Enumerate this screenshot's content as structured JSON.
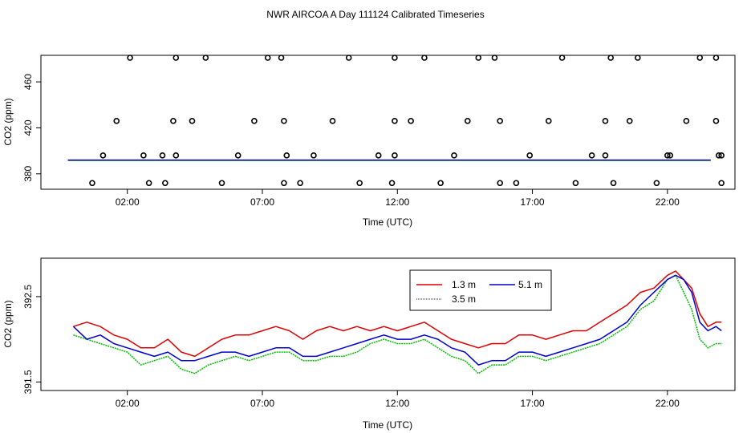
{
  "title": "NWR AIRCOA A  Day 111124  Calibrated Timeseries",
  "colors": {
    "red": "#dd0000",
    "green": "#00bb00",
    "blue": "#0000cc",
    "axis": "#000000"
  },
  "chart_data": [
    {
      "type": "scatter",
      "xlabel": "Time (UTC)",
      "ylabel": "CO2 (ppm)",
      "x_ticks": [
        "02:00",
        "07:00",
        "12:00",
        "17:00",
        "22:00"
      ],
      "x_tick_values": [
        2,
        7,
        12,
        17,
        22
      ],
      "y_ticks": [
        "380",
        "420",
        "460"
      ],
      "y_tick_values": [
        380,
        420,
        460
      ],
      "xlim": [
        -1.2,
        24.5
      ],
      "ylim": [
        366.6,
        483.1
      ],
      "points": {
        "x": [
          0.7,
          1.1,
          1.6,
          2.1,
          2.6,
          2.8,
          3.3,
          3.4,
          3.7,
          3.8,
          3.8,
          4.4,
          4.9,
          5.5,
          6.1,
          6.7,
          7.2,
          7.7,
          7.8,
          7.8,
          7.9,
          8.4,
          8.9,
          9.6,
          10.2,
          10.6,
          11.3,
          11.8,
          11.9,
          11.9,
          11.9,
          12.5,
          13.0,
          13.6,
          14.1,
          14.6,
          15.0,
          15.6,
          15.8,
          15.8,
          16.4,
          16.9,
          17.6,
          18.1,
          18.6,
          19.2,
          19.7,
          19.7,
          19.9,
          20.0,
          20.6,
          20.9,
          21.6,
          22.0,
          22.1,
          22.7,
          23.2,
          23.8,
          23.8,
          23.9,
          24.0,
          24.0
        ],
        "y": [
          372,
          396,
          426,
          481,
          396,
          372,
          396,
          372,
          426,
          481,
          396,
          426,
          481,
          372,
          396,
          426,
          481,
          481,
          426,
          372,
          396,
          372,
          396,
          426,
          481,
          372,
          396,
          372,
          481,
          426,
          396,
          426,
          481,
          372,
          396,
          426,
          481,
          481,
          426,
          372,
          372,
          396,
          426,
          481,
          372,
          396,
          396,
          426,
          481,
          372,
          426,
          481,
          372,
          396,
          396,
          426,
          481,
          481,
          426,
          396,
          372,
          396
        ]
      },
      "series": [
        {
          "name": "1.3 m",
          "color": "#dd0000",
          "level": 392.0
        },
        {
          "name": "3.5 m",
          "color": "#00bb00",
          "level": 391.7
        },
        {
          "name": "5.1 m",
          "color": "#0000cc",
          "level": 391.9
        }
      ]
    },
    {
      "type": "line",
      "xlabel": "Time (UTC)",
      "ylabel": "CO2 (ppm)",
      "x_ticks": [
        "02:00",
        "07:00",
        "12:00",
        "17:00",
        "22:00"
      ],
      "x_tick_values": [
        2,
        7,
        12,
        17,
        22
      ],
      "y_ticks": [
        "391.5",
        "392.5"
      ],
      "y_tick_values": [
        391.5,
        392.5
      ],
      "xlim": [
        -1.2,
        24.5
      ],
      "ylim": [
        391.4,
        392.95
      ],
      "legend_position": "top-right",
      "x": [
        0.0,
        0.5,
        1.0,
        1.5,
        2.0,
        2.5,
        3.0,
        3.5,
        4.0,
        4.5,
        5.0,
        5.5,
        6.0,
        6.5,
        7.0,
        7.5,
        8.0,
        8.5,
        9.0,
        9.5,
        10.0,
        10.5,
        11.0,
        11.5,
        12.0,
        12.5,
        13.0,
        13.5,
        14.0,
        14.5,
        15.0,
        15.5,
        16.0,
        16.5,
        17.0,
        17.5,
        18.0,
        18.5,
        19.0,
        19.5,
        20.0,
        20.5,
        21.0,
        21.5,
        22.0,
        22.3,
        22.6,
        22.9,
        23.2,
        23.5,
        23.8,
        24.0
      ],
      "series": [
        {
          "name": "1.3 m",
          "color": "#dd0000",
          "values": [
            392.15,
            392.2,
            392.15,
            392.05,
            392.0,
            391.9,
            391.9,
            392.0,
            391.85,
            391.8,
            391.9,
            392.0,
            392.05,
            392.05,
            392.1,
            392.15,
            392.1,
            392.0,
            392.1,
            392.15,
            392.1,
            392.15,
            392.1,
            392.15,
            392.1,
            392.15,
            392.2,
            392.1,
            392.0,
            391.95,
            391.9,
            391.95,
            391.95,
            392.05,
            392.05,
            392.0,
            392.05,
            392.1,
            392.1,
            392.2,
            392.3,
            392.4,
            392.55,
            392.6,
            392.75,
            392.8,
            392.7,
            392.6,
            392.3,
            392.15,
            392.2,
            392.2
          ]
        },
        {
          "name": "3.5 m",
          "color": "#00bb00",
          "values": [
            392.05,
            392.0,
            391.95,
            391.9,
            391.85,
            391.7,
            391.75,
            391.8,
            391.65,
            391.6,
            391.7,
            391.75,
            391.8,
            391.75,
            391.8,
            391.85,
            391.85,
            391.75,
            391.75,
            391.8,
            391.8,
            391.85,
            391.95,
            392.0,
            391.95,
            391.95,
            392.0,
            391.9,
            391.8,
            391.75,
            391.6,
            391.7,
            391.7,
            391.8,
            391.8,
            391.75,
            391.8,
            391.85,
            391.9,
            391.95,
            392.05,
            392.15,
            392.35,
            392.45,
            392.7,
            392.75,
            392.55,
            392.35,
            392.0,
            391.9,
            391.95,
            391.95
          ]
        },
        {
          "name": "5.1 m",
          "color": "#0000cc",
          "values": [
            392.15,
            392.0,
            392.05,
            391.95,
            391.9,
            391.85,
            391.8,
            391.85,
            391.75,
            391.75,
            391.8,
            391.85,
            391.85,
            391.8,
            391.85,
            391.9,
            391.9,
            391.8,
            391.8,
            391.85,
            391.9,
            391.95,
            392.0,
            392.05,
            392.0,
            392.0,
            392.05,
            392.0,
            391.9,
            391.85,
            391.7,
            391.75,
            391.75,
            391.85,
            391.85,
            391.8,
            391.85,
            391.9,
            391.95,
            392.0,
            392.1,
            392.2,
            392.4,
            392.55,
            392.7,
            392.75,
            392.7,
            392.55,
            392.2,
            392.1,
            392.15,
            392.1
          ]
        }
      ]
    }
  ]
}
